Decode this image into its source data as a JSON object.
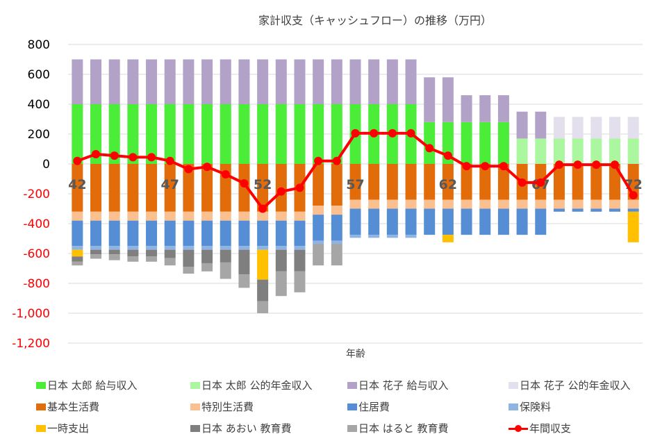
{
  "chart_data": {
    "type": "bar",
    "stacked": true,
    "title": "家計収支（キャッシュフロー）の推移（万円）",
    "xlabel": "年齢",
    "ylabel": "",
    "ylim": [
      -1200,
      800
    ],
    "yticks": [
      800,
      600,
      400,
      200,
      0,
      -200,
      -400,
      -600,
      -800,
      -1000,
      -1200
    ],
    "ytick_labels": [
      "800",
      "600",
      "400",
      "200",
      "0",
      "-200",
      "-400",
      "-600",
      "-800",
      "-1,000",
      "-1,200"
    ],
    "grid": true,
    "legend_position": "bottom",
    "x": [
      42,
      43,
      44,
      45,
      46,
      47,
      48,
      49,
      50,
      51,
      52,
      53,
      54,
      55,
      56,
      57,
      58,
      59,
      60,
      61,
      62,
      63,
      64,
      65,
      66,
      67,
      68,
      69,
      70,
      71,
      72
    ],
    "x_tick_labels": [
      "42",
      "47",
      "52",
      "57",
      "62",
      "67",
      "72"
    ],
    "series": [
      {
        "name": "日本 太郎 給与収入",
        "color": "#4ced38",
        "values": [
          400,
          400,
          400,
          400,
          400,
          400,
          400,
          400,
          400,
          400,
          400,
          400,
          400,
          400,
          400,
          400,
          400,
          400,
          400,
          280,
          280,
          280,
          280,
          280,
          0,
          0,
          0,
          0,
          0,
          0,
          0
        ]
      },
      {
        "name": "日本 太郎 公的年金収入",
        "color": "#abf7a0",
        "values": [
          0,
          0,
          0,
          0,
          0,
          0,
          0,
          0,
          0,
          0,
          0,
          0,
          0,
          0,
          0,
          0,
          0,
          0,
          0,
          0,
          0,
          0,
          0,
          0,
          170,
          170,
          170,
          170,
          170,
          170,
          170
        ]
      },
      {
        "name": "日本 花子 給与収入",
        "color": "#b3a2c8",
        "values": [
          300,
          300,
          300,
          300,
          300,
          300,
          300,
          300,
          300,
          300,
          300,
          300,
          300,
          300,
          300,
          300,
          300,
          300,
          300,
          300,
          300,
          180,
          180,
          180,
          180,
          180,
          0,
          0,
          0,
          0,
          0
        ]
      },
      {
        "name": "日本 花子 公的年金収入",
        "color": "#e4dfec",
        "values": [
          0,
          0,
          0,
          0,
          0,
          0,
          0,
          0,
          0,
          0,
          0,
          0,
          0,
          0,
          0,
          0,
          0,
          0,
          0,
          0,
          0,
          0,
          0,
          0,
          0,
          0,
          145,
          145,
          145,
          145,
          145
        ]
      },
      {
        "name": "基本生活費",
        "color": "#e36c0a",
        "values": [
          -320,
          -320,
          -320,
          -320,
          -320,
          -320,
          -320,
          -320,
          -320,
          -320,
          -320,
          -320,
          -320,
          -280,
          -280,
          -240,
          -240,
          -240,
          -240,
          -240,
          -240,
          -240,
          -240,
          -240,
          -240,
          -240,
          -240,
          -240,
          -240,
          -240,
          -240
        ]
      },
      {
        "name": "特別生活費",
        "color": "#fac090",
        "values": [
          -60,
          -60,
          -60,
          -60,
          -60,
          -60,
          -60,
          -60,
          -60,
          -60,
          -60,
          -60,
          -60,
          -60,
          -60,
          -60,
          -60,
          -60,
          -60,
          -60,
          -60,
          -60,
          -60,
          -60,
          -60,
          -60,
          -60,
          -60,
          -60,
          -60,
          -60
        ]
      },
      {
        "name": "住居費",
        "color": "#558ed5",
        "values": [
          -170,
          -170,
          -170,
          -170,
          -170,
          -170,
          -170,
          -170,
          -170,
          -170,
          -170,
          -170,
          -170,
          -175,
          -175,
          -175,
          -175,
          -175,
          -175,
          -175,
          -175,
          -175,
          -175,
          -175,
          -175,
          -175,
          -20,
          -20,
          -20,
          -20,
          -20
        ]
      },
      {
        "name": "保険料",
        "color": "#8db4e2",
        "values": [
          -25,
          -25,
          -25,
          -25,
          -25,
          -25,
          -25,
          -25,
          -25,
          -25,
          -25,
          -25,
          -25,
          -20,
          -20,
          -20,
          -20,
          -20,
          -20,
          0,
          0,
          0,
          0,
          0,
          0,
          0,
          0,
          0,
          0,
          0,
          0
        ]
      },
      {
        "name": "一時支出",
        "color": "#ffc000",
        "values": [
          -45,
          0,
          0,
          0,
          0,
          0,
          0,
          0,
          0,
          0,
          -200,
          0,
          0,
          0,
          0,
          0,
          0,
          0,
          0,
          0,
          -50,
          0,
          0,
          0,
          0,
          0,
          0,
          0,
          0,
          0,
          -205
        ]
      },
      {
        "name": "日本 あおい 教育費",
        "color": "#7f7f7f",
        "values": [
          -35,
          -30,
          -30,
          -45,
          -45,
          -55,
          -115,
          -90,
          -85,
          -165,
          -145,
          -145,
          -145,
          0,
          0,
          0,
          0,
          0,
          0,
          0,
          0,
          0,
          0,
          0,
          0,
          0,
          0,
          0,
          0,
          0,
          0
        ]
      },
      {
        "name": "日本 はると 教育費",
        "color": "#a6a6a6",
        "values": [
          -25,
          -30,
          -40,
          -35,
          -35,
          -50,
          -45,
          -55,
          -110,
          -90,
          -80,
          -165,
          -140,
          -145,
          -145,
          0,
          0,
          0,
          0,
          0,
          0,
          0,
          0,
          0,
          0,
          0,
          0,
          0,
          0,
          0,
          0
        ]
      }
    ],
    "line_series": {
      "name": "年間収支",
      "color": "#ff0000",
      "values": [
        20,
        65,
        55,
        45,
        45,
        20,
        -35,
        -20,
        -70,
        -130,
        -300,
        -185,
        -160,
        20,
        20,
        205,
        205,
        205,
        205,
        105,
        55,
        -15,
        -15,
        -15,
        -125,
        -125,
        -5,
        -5,
        -5,
        -5,
        -210
      ]
    }
  }
}
